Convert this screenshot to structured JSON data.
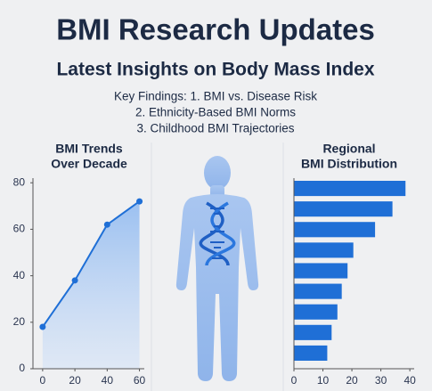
{
  "header": {
    "title": "BMI Research Updates",
    "subtitle": "Latest Insights on Body Mass Index",
    "findings": [
      "Key Findings: 1. BMI vs. Disease Risk",
      "2. Ethnicity-Based BMI Norms",
      "3. Childhood BMI Trajectories"
    ]
  },
  "chart_data": [
    {
      "type": "line",
      "title": [
        "BMI Trends",
        "Over Decade"
      ],
      "color": "#1f6fd6",
      "x": [
        0,
        20,
        40,
        60
      ],
      "values": [
        18,
        38,
        62,
        72
      ],
      "xlim": [
        -6,
        63
      ],
      "xticks": [
        0,
        20,
        40,
        60
      ],
      "ylim": [
        0,
        82
      ],
      "yticks": [
        0,
        20,
        40,
        60,
        80
      ]
    },
    {
      "type": "barh",
      "title": [
        "Regional",
        "BMI Distribution"
      ],
      "color": "#1f6fd6",
      "values": [
        38.5,
        34,
        28,
        20.5,
        18.5,
        16.5,
        15,
        13,
        11.5
      ],
      "xlim": [
        0,
        41.5
      ],
      "xticks": [
        0,
        10,
        20,
        30,
        40
      ]
    }
  ]
}
